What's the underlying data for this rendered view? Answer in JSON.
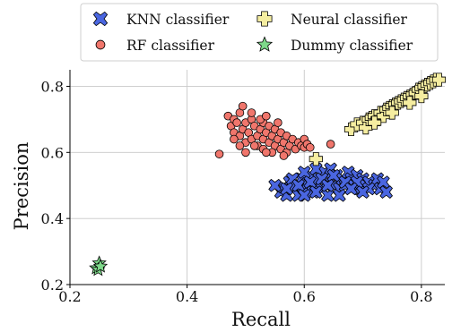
{
  "chart_data": {
    "type": "scatter",
    "title": "",
    "xlabel": "Recall",
    "ylabel": "Precision",
    "xlim": [
      0.2,
      0.84
    ],
    "ylim": [
      0.2,
      0.85
    ],
    "xticks": [
      0.2,
      0.4,
      0.6,
      0.8
    ],
    "yticks": [
      0.2,
      0.4,
      0.6,
      0.8
    ],
    "xtick_labels": [
      "0.2",
      "0.4",
      "0.6",
      "0.8"
    ],
    "ytick_labels": [
      "0.2",
      "0.4",
      "0.6",
      "0.8"
    ],
    "grid": true,
    "legend_position": "top-right, above plot",
    "series": [
      {
        "name": "KNN classifier",
        "marker": "x-filled",
        "color": "#4a66e0",
        "points": [
          [
            0.56,
            0.48
          ],
          [
            0.565,
            0.495
          ],
          [
            0.57,
            0.47
          ],
          [
            0.575,
            0.51
          ],
          [
            0.58,
            0.49
          ],
          [
            0.585,
            0.5
          ],
          [
            0.59,
            0.47
          ],
          [
            0.595,
            0.52
          ],
          [
            0.6,
            0.49
          ],
          [
            0.605,
            0.505
          ],
          [
            0.61,
            0.53
          ],
          [
            0.615,
            0.48
          ],
          [
            0.62,
            0.5
          ],
          [
            0.625,
            0.52
          ],
          [
            0.63,
            0.49
          ],
          [
            0.635,
            0.54
          ],
          [
            0.64,
            0.51
          ],
          [
            0.645,
            0.55
          ],
          [
            0.65,
            0.5
          ],
          [
            0.655,
            0.53
          ],
          [
            0.66,
            0.49
          ],
          [
            0.665,
            0.52
          ],
          [
            0.67,
            0.5
          ],
          [
            0.675,
            0.54
          ],
          [
            0.68,
            0.52
          ],
          [
            0.685,
            0.5
          ],
          [
            0.69,
            0.53
          ],
          [
            0.695,
            0.49
          ],
          [
            0.7,
            0.52
          ],
          [
            0.705,
            0.5
          ],
          [
            0.71,
            0.51
          ],
          [
            0.72,
            0.5
          ],
          [
            0.725,
            0.52
          ],
          [
            0.73,
            0.49
          ],
          [
            0.735,
            0.51
          ],
          [
            0.74,
            0.48
          ],
          [
            0.58,
            0.52
          ],
          [
            0.6,
            0.54
          ],
          [
            0.62,
            0.55
          ],
          [
            0.64,
            0.47
          ],
          [
            0.66,
            0.47
          ],
          [
            0.59,
            0.5
          ],
          [
            0.61,
            0.51
          ],
          [
            0.63,
            0.52
          ],
          [
            0.65,
            0.53
          ],
          [
            0.67,
            0.51
          ],
          [
            0.69,
            0.51
          ],
          [
            0.71,
            0.49
          ],
          [
            0.57,
            0.49
          ],
          [
            0.6,
            0.47
          ],
          [
            0.62,
            0.48
          ],
          [
            0.64,
            0.5
          ],
          [
            0.68,
            0.49
          ],
          [
            0.7,
            0.48
          ],
          [
            0.55,
            0.5
          ]
        ]
      },
      {
        "name": "RF classifier",
        "marker": "circle",
        "color": "#f0766c",
        "points": [
          [
            0.455,
            0.595
          ],
          [
            0.47,
            0.71
          ],
          [
            0.475,
            0.68
          ],
          [
            0.48,
            0.7
          ],
          [
            0.48,
            0.66
          ],
          [
            0.485,
            0.69
          ],
          [
            0.49,
            0.65
          ],
          [
            0.49,
            0.72
          ],
          [
            0.495,
            0.67
          ],
          [
            0.5,
            0.69
          ],
          [
            0.5,
            0.63
          ],
          [
            0.505,
            0.66
          ],
          [
            0.51,
            0.7
          ],
          [
            0.51,
            0.64
          ],
          [
            0.515,
            0.68
          ],
          [
            0.52,
            0.65
          ],
          [
            0.52,
            0.62
          ],
          [
            0.525,
            0.67
          ],
          [
            0.53,
            0.69
          ],
          [
            0.53,
            0.64
          ],
          [
            0.535,
            0.66
          ],
          [
            0.54,
            0.63
          ],
          [
            0.54,
            0.68
          ],
          [
            0.545,
            0.65
          ],
          [
            0.55,
            0.67
          ],
          [
            0.55,
            0.62
          ],
          [
            0.555,
            0.64
          ],
          [
            0.56,
            0.66
          ],
          [
            0.56,
            0.61
          ],
          [
            0.565,
            0.63
          ],
          [
            0.57,
            0.65
          ],
          [
            0.57,
            0.6
          ],
          [
            0.575,
            0.62
          ],
          [
            0.58,
            0.64
          ],
          [
            0.585,
            0.61
          ],
          [
            0.59,
            0.63
          ],
          [
            0.595,
            0.62
          ],
          [
            0.6,
            0.64
          ],
          [
            0.6,
            0.615
          ],
          [
            0.605,
            0.625
          ],
          [
            0.61,
            0.615
          ],
          [
            0.545,
            0.6
          ],
          [
            0.53,
            0.61
          ],
          [
            0.515,
            0.62
          ],
          [
            0.5,
            0.6
          ],
          [
            0.49,
            0.62
          ],
          [
            0.48,
            0.64
          ],
          [
            0.525,
            0.7
          ],
          [
            0.535,
            0.71
          ],
          [
            0.51,
            0.72
          ],
          [
            0.495,
            0.74
          ],
          [
            0.535,
            0.6
          ],
          [
            0.555,
            0.69
          ],
          [
            0.565,
            0.59
          ],
          [
            0.645,
            0.625
          ]
        ]
      },
      {
        "name": "Neural classifier",
        "marker": "plus-filled",
        "color": "#f5eda0",
        "points": [
          [
            0.62,
            0.58
          ],
          [
            0.68,
            0.67
          ],
          [
            0.69,
            0.685
          ],
          [
            0.7,
            0.69
          ],
          [
            0.705,
            0.675
          ],
          [
            0.71,
            0.7
          ],
          [
            0.715,
            0.705
          ],
          [
            0.72,
            0.71
          ],
          [
            0.725,
            0.7
          ],
          [
            0.73,
            0.72
          ],
          [
            0.735,
            0.71
          ],
          [
            0.74,
            0.73
          ],
          [
            0.745,
            0.735
          ],
          [
            0.75,
            0.74
          ],
          [
            0.755,
            0.745
          ],
          [
            0.76,
            0.75
          ],
          [
            0.765,
            0.755
          ],
          [
            0.77,
            0.76
          ],
          [
            0.775,
            0.765
          ],
          [
            0.78,
            0.77
          ],
          [
            0.785,
            0.775
          ],
          [
            0.79,
            0.78
          ],
          [
            0.795,
            0.79
          ],
          [
            0.8,
            0.795
          ],
          [
            0.805,
            0.8
          ],
          [
            0.81,
            0.805
          ],
          [
            0.815,
            0.81
          ],
          [
            0.82,
            0.815
          ],
          [
            0.825,
            0.82
          ],
          [
            0.83,
            0.82
          ],
          [
            0.72,
            0.69
          ],
          [
            0.75,
            0.72
          ],
          [
            0.78,
            0.75
          ],
          [
            0.8,
            0.77
          ]
        ]
      },
      {
        "name": "Dummy classifier",
        "marker": "star",
        "color": "#7ed98a",
        "points": [
          [
            0.245,
            0.25
          ],
          [
            0.25,
            0.265
          ],
          [
            0.248,
            0.245
          ],
          [
            0.252,
            0.255
          ]
        ]
      }
    ]
  }
}
